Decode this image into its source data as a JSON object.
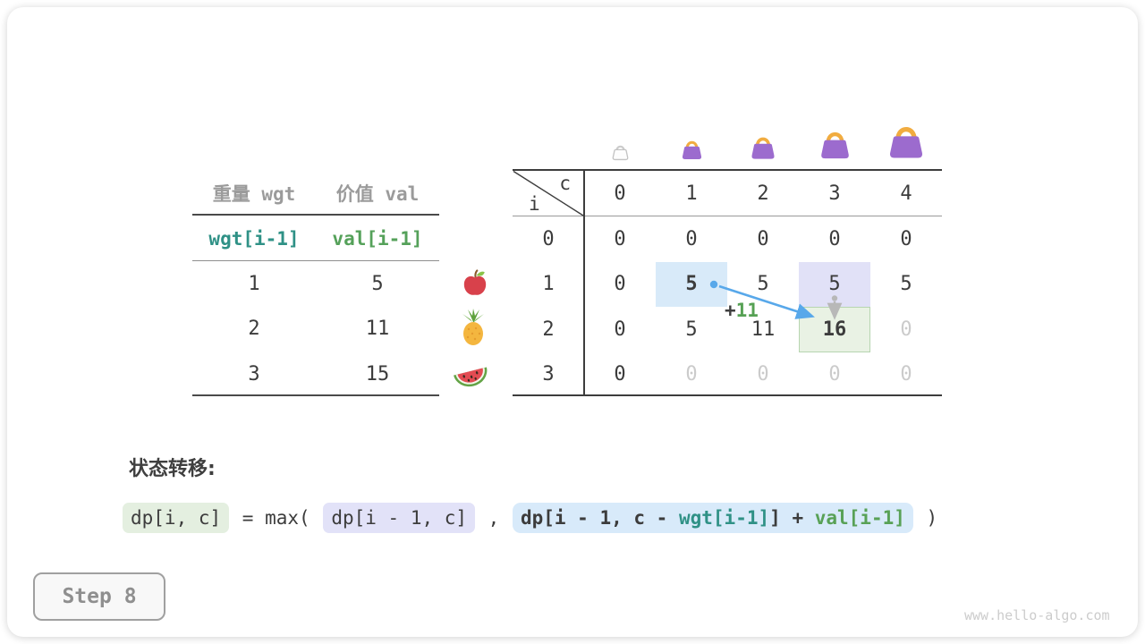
{
  "page": {
    "watermark": "www.hello-algo.com",
    "step_label": "Step 8"
  },
  "items_table": {
    "headers": [
      "重量 wgt",
      "价值 val"
    ],
    "index_row": [
      "wgt[i-1]",
      "val[i-1]"
    ],
    "rows": [
      [
        "1",
        "5"
      ],
      [
        "2",
        "11"
      ],
      [
        "3",
        "15"
      ]
    ],
    "row_icons": [
      "apple-icon",
      "pineapple-icon",
      "watermelon-icon"
    ]
  },
  "dp_table": {
    "corner": {
      "col": "c",
      "row": "i"
    },
    "col_headers": [
      "0",
      "1",
      "2",
      "3",
      "4"
    ],
    "row_headers": [
      "0",
      "1",
      "2",
      "3"
    ],
    "cells": [
      [
        "0",
        "0",
        "0",
        "0",
        "0"
      ],
      [
        "0",
        "5",
        "5",
        "5",
        "5"
      ],
      [
        "0",
        "5",
        "11",
        "16",
        "0"
      ],
      [
        "0",
        "0",
        "0",
        "0",
        "0"
      ]
    ],
    "bold_cells": [
      [
        1,
        1
      ],
      [
        2,
        3
      ]
    ],
    "muted_cells": [
      [
        2,
        4
      ],
      [
        3,
        1
      ],
      [
        3,
        2
      ],
      [
        3,
        3
      ],
      [
        3,
        4
      ]
    ],
    "highlights": {
      "1,1": "blue",
      "1,3": "purple",
      "2,3": "green"
    },
    "bag_icons": [
      "empty-bag-icon",
      "handbag-icon",
      "handbag-icon",
      "handbag-icon",
      "handbag-icon"
    ],
    "arrow_label": {
      "plus": "+",
      "value": "11"
    }
  },
  "transition": {
    "heading": "状态转移:",
    "result_chip": "dp[i, c]",
    "equals_max": " = max( ",
    "prev_chip": "dp[i - 1, c]",
    "comma": " , ",
    "take_pre": "dp[i - 1, c - ",
    "take_wgt": "wgt[i-1]",
    "take_bracket": "]",
    "take_plus": " + ",
    "take_val": "val[i-1]",
    "closing": " )"
  },
  "colors": {
    "teal": "#2f9186",
    "green": "#55a15a",
    "muted_gray": "#cbcbcb",
    "arrow_blue": "#58a8ea",
    "arrow_gray": "#b8b8b8",
    "hl_blue": "#d8eaf9",
    "hl_purple": "#e1e1f7",
    "hl_green": "#e9f2e4",
    "bag_purple": "#9c6bce",
    "bag_handle": "#f1ac40"
  }
}
